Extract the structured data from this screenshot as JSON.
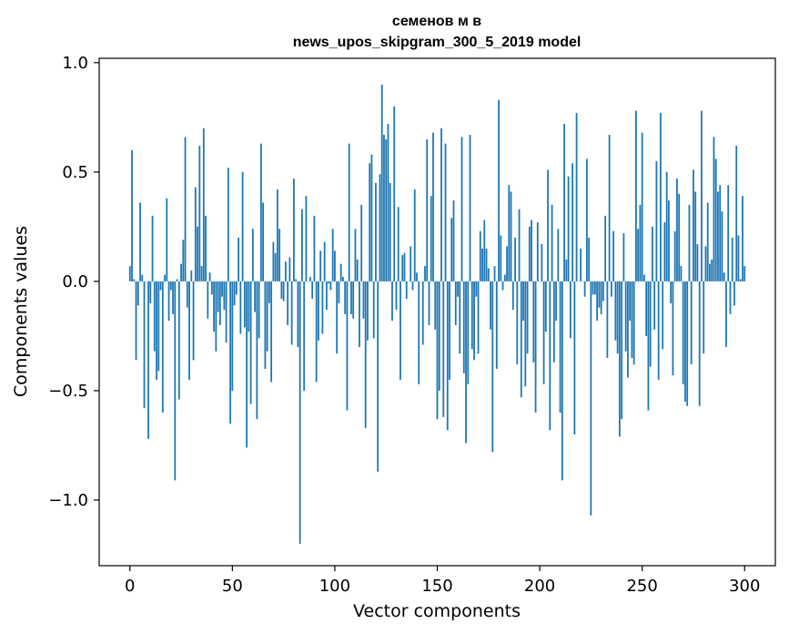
{
  "chart_data": {
    "type": "bar",
    "title": "семенов м в",
    "subtitle": "news_upos_skipgram_300_5_2019 model",
    "xlabel": "Vector components",
    "ylabel": "Components values",
    "xlim": [
      -15,
      315
    ],
    "ylim": [
      -1.3,
      1.02
    ],
    "x_ticks": [
      0,
      50,
      100,
      150,
      200,
      250,
      300
    ],
    "x_tick_labels": [
      "0",
      "50",
      "100",
      "150",
      "200",
      "250",
      "300"
    ],
    "y_ticks": [
      -1.0,
      -0.5,
      0.0,
      0.5,
      1.0
    ],
    "y_tick_labels": [
      "−1.0",
      "−0.5",
      "0.0",
      "0.5",
      "1.0"
    ],
    "grid": false,
    "bar_color": "#1f77b4",
    "series": [
      {
        "values": [
          0.07,
          0.6,
          0.01,
          -0.36,
          -0.11,
          0.36,
          0.03,
          -0.58,
          0.0,
          -0.72,
          -0.1,
          0.3,
          -0.32,
          -0.45,
          -0.41,
          -0.04,
          -0.6,
          0.03,
          0.38,
          -0.18,
          -0.04,
          -0.15,
          -0.91,
          0.01,
          -0.54,
          0.08,
          0.19,
          0.66,
          -0.12,
          -0.45,
          0.05,
          -0.36,
          0.43,
          0.25,
          0.62,
          0.07,
          0.7,
          0.3,
          -0.17,
          0.04,
          -0.06,
          -0.23,
          -0.32,
          -0.14,
          -0.2,
          -0.07,
          -0.13,
          -0.28,
          0.52,
          -0.65,
          -0.5,
          -0.11,
          -0.06,
          0.2,
          -0.24,
          0.5,
          -0.21,
          -0.76,
          -0.23,
          -0.56,
          0.24,
          -0.14,
          -0.63,
          -0.26,
          0.63,
          0.36,
          -0.4,
          -0.32,
          -0.1,
          -0.46,
          0.18,
          0.13,
          0.42,
          0.24,
          -0.08,
          -0.09,
          0.09,
          -0.2,
          0.11,
          -0.29,
          0.47,
          0.01,
          -0.3,
          -1.2,
          0.33,
          -0.5,
          0.39,
          0.0,
          0.02,
          -0.08,
          0.3,
          -0.46,
          -0.27,
          0.14,
          -0.24,
          0.18,
          -0.13,
          -0.01,
          -0.04,
          0.24,
          0.14,
          -0.33,
          -0.1,
          0.08,
          0.02,
          -0.15,
          -0.59,
          0.63,
          -0.15,
          -0.17,
          0.24,
          0.1,
          -0.3,
          0.35,
          -0.17,
          -0.67,
          -0.27,
          0.54,
          0.58,
          -0.26,
          0.45,
          -0.87,
          0.49,
          0.9,
          0.67,
          0.65,
          0.72,
          0.45,
          -0.18,
          0.8,
          -0.13,
          0.34,
          -0.45,
          0.12,
          0.13,
          -0.08,
          0.0,
          0.16,
          -0.04,
          0.42,
          0.04,
          -0.47,
          0.0,
          -0.29,
          0.07,
          0.65,
          -0.2,
          0.39,
          0.68,
          -0.22,
          -0.63,
          -0.5,
          0.7,
          -0.62,
          0.63,
          -0.68,
          -0.45,
          0.29,
          0.37,
          -0.2,
          -0.07,
          -0.33,
          0.66,
          -0.42,
          -0.74,
          -0.47,
          0.67,
          -0.31,
          -0.36,
          -0.07,
          -0.33,
          0.23,
          0.15,
          0.28,
          0.15,
          0.06,
          -0.22,
          -0.78,
          0.07,
          -0.4,
          0.83,
          0.21,
          -0.04,
          0.03,
          0.16,
          0.44,
          0.41,
          -0.13,
          0.2,
          -0.38,
          0.33,
          -0.53,
          -0.18,
          -0.48,
          -0.33,
          0.25,
          0.28,
          -0.37,
          -0.6,
          0.27,
          0.0,
          0.17,
          -0.47,
          -0.23,
          0.51,
          -0.68,
          0.35,
          -0.37,
          -0.18,
          0.24,
          -0.6,
          -0.91,
          0.72,
          0.1,
          0.48,
          -0.26,
          0.54,
          -0.7,
          0.77,
          0.0,
          0.15,
          0.0,
          -0.07,
          0.56,
          0.2,
          -1.07,
          -0.06,
          -0.06,
          -0.18,
          -0.12,
          -0.15,
          -0.09,
          0.3,
          -0.35,
          0.67,
          -0.07,
          0.23,
          -0.27,
          -0.33,
          -0.71,
          -0.63,
          0.22,
          -0.32,
          -0.44,
          -0.18,
          -0.35,
          -0.38,
          0.78,
          0.24,
          0.35,
          0.68,
          0.03,
          -0.25,
          -0.59,
          -0.39,
          0.25,
          -0.22,
          0.55,
          -0.45,
          0.77,
          -0.31,
          0.27,
          0.5,
          0.37,
          -0.1,
          -0.43,
          0.23,
          0.47,
          0.4,
          0.07,
          -0.47,
          -0.55,
          -0.57,
          0.35,
          -0.38,
          0.51,
          0.41,
          0.17,
          -0.57,
          0.78,
          -0.33,
          0.16,
          0.36,
          0.08,
          0.1,
          0.66,
          0.56,
          0.41,
          0.44,
          0.32,
          0.04,
          -0.3,
          0.44,
          -0.15,
          0.2,
          -0.11,
          0.62,
          0.21,
          0.01,
          0.39,
          0.07
        ]
      }
    ]
  }
}
